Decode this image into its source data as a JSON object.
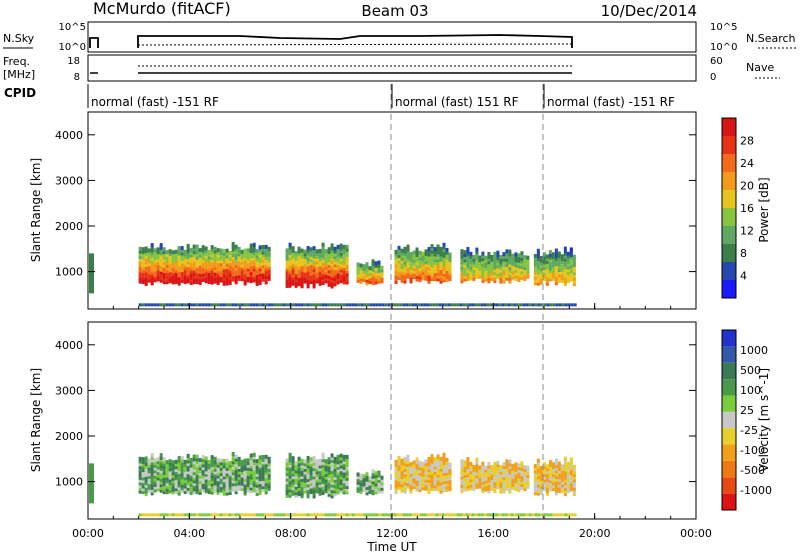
{
  "header": {
    "station": "McMurdo (fitACF)",
    "beam": "Beam 03",
    "date": "10/Dec/2014"
  },
  "strips": {
    "nsky_label": "N.Sky",
    "nsky_ticks": [
      "10^5",
      "10^0"
    ],
    "nsearch_label": "N.Search",
    "nsearch_ticks": [
      "10^5",
      "10^0"
    ],
    "freq_label_1": "Freq.",
    "freq_label_2": "[MHz]",
    "freq_ticks": [
      "18",
      "8"
    ],
    "nave_label": "Nave",
    "nave_ticks": [
      "60",
      "0"
    ],
    "cpid_label": "CPID",
    "cpid_segments": [
      {
        "label": "normal (fast) -151 RF",
        "start_hour": 0,
        "end_hour": 12
      },
      {
        "label": "normal (fast) 151 RF",
        "start_hour": 12,
        "end_hour": 18
      },
      {
        "label": "normal (fast) -151 RF",
        "start_hour": 18,
        "end_hour": 24
      }
    ]
  },
  "panels": {
    "power": {
      "ylabel": "Slant Range [km]",
      "ytick_labels": [
        "1000",
        "2000",
        "3000",
        "4000"
      ],
      "cbar_title": "Power [dB]",
      "cbar_labels": [
        "4",
        "8",
        "12",
        "16",
        "20",
        "24",
        "28"
      ],
      "cbar_colors": [
        "#1a1aff",
        "#2448b0",
        "#3a7e4a",
        "#5fa862",
        "#86c441",
        "#e8c41c",
        "#f29a1a",
        "#f26a1a",
        "#e83218",
        "#d91414"
      ]
    },
    "velocity": {
      "ylabel": "Slant Range [km]",
      "ytick_labels": [
        "1000",
        "2000",
        "3000",
        "4000"
      ],
      "cbar_title": "Velocity [m s^-1]",
      "cbar_labels": [
        "1000",
        "500",
        "100",
        "25",
        "-25",
        "-100",
        "-500",
        "-1000"
      ],
      "cbar_colors": [
        "#2233cc",
        "#3258a8",
        "#3a7a55",
        "#4a9a4a",
        "#7acd3a",
        "#c8c8c8",
        "#e8cf2a",
        "#f2a01a",
        "#f07a12",
        "#e84a14",
        "#dd1414"
      ]
    },
    "xtick_labels": [
      "00:00",
      "04:00",
      "08:00",
      "12:00",
      "16:00",
      "20:00",
      "00:00"
    ],
    "xlabel": "Time UT"
  },
  "chart_data": {
    "type": "heatmap",
    "title": "Beam 03",
    "xlabel": "Time UT",
    "ylabel": "Slant Range [km]",
    "x_range_hours": [
      0,
      24
    ],
    "y_range_km": [
      180,
      4500
    ],
    "data_coverage_hours": [
      [
        0,
        0.2
      ],
      [
        2,
        19.2
      ]
    ],
    "echo_bands": [
      {
        "start_hour": 2.0,
        "end_hour": 7.2,
        "range_km": [
          700,
          1600
        ],
        "peak_power_db": 28
      },
      {
        "start_hour": 7.8,
        "end_hour": 10.2,
        "range_km": [
          650,
          1600
        ],
        "peak_power_db": 28
      },
      {
        "start_hour": 10.6,
        "end_hour": 11.6,
        "range_km": [
          700,
          1250
        ],
        "peak_power_db": 20
      },
      {
        "start_hour": 12.1,
        "end_hour": 14.3,
        "range_km": [
          750,
          1600
        ],
        "peak_power_db": 20
      },
      {
        "start_hour": 14.7,
        "end_hour": 17.4,
        "range_km": [
          750,
          1500
        ],
        "peak_power_db": 16
      },
      {
        "start_hour": 17.6,
        "end_hour": 19.2,
        "range_km": [
          700,
          1500
        ],
        "peak_power_db": 16
      }
    ]
  }
}
